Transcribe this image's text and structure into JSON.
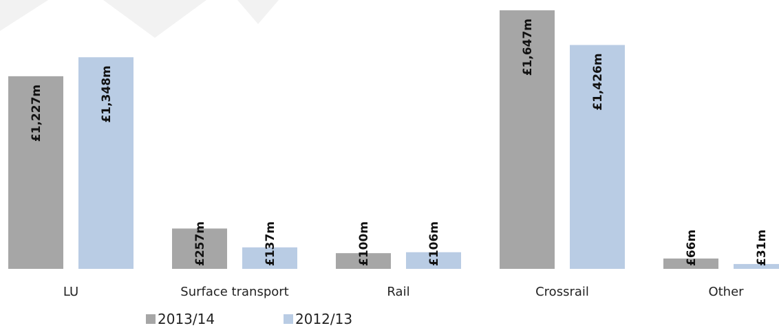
{
  "chart_data": {
    "type": "bar",
    "title": "",
    "xlabel": "",
    "ylabel": "",
    "categories": [
      "LU",
      "Surface transport",
      "Rail",
      "Crossrail",
      "Other"
    ],
    "series": [
      {
        "name": "2013/14",
        "color": "#a6a6a6",
        "values": [
          1227,
          257,
          100,
          1647,
          66
        ],
        "labels": [
          "£1,227m",
          "£257m",
          "£100m",
          "£1,647m",
          "£66m"
        ]
      },
      {
        "name": "2012/13",
        "color": "#b9cce4",
        "values": [
          1348,
          137,
          106,
          1426,
          31
        ],
        "labels": [
          "£1,348m",
          "£137m",
          "£106m",
          "£1,426m",
          "£31m"
        ]
      }
    ],
    "ylim": [
      0,
      1660
    ],
    "grid": false,
    "legend": "bottom-left",
    "background": "#ffffff",
    "watermark_color": "#f2f2f2"
  }
}
